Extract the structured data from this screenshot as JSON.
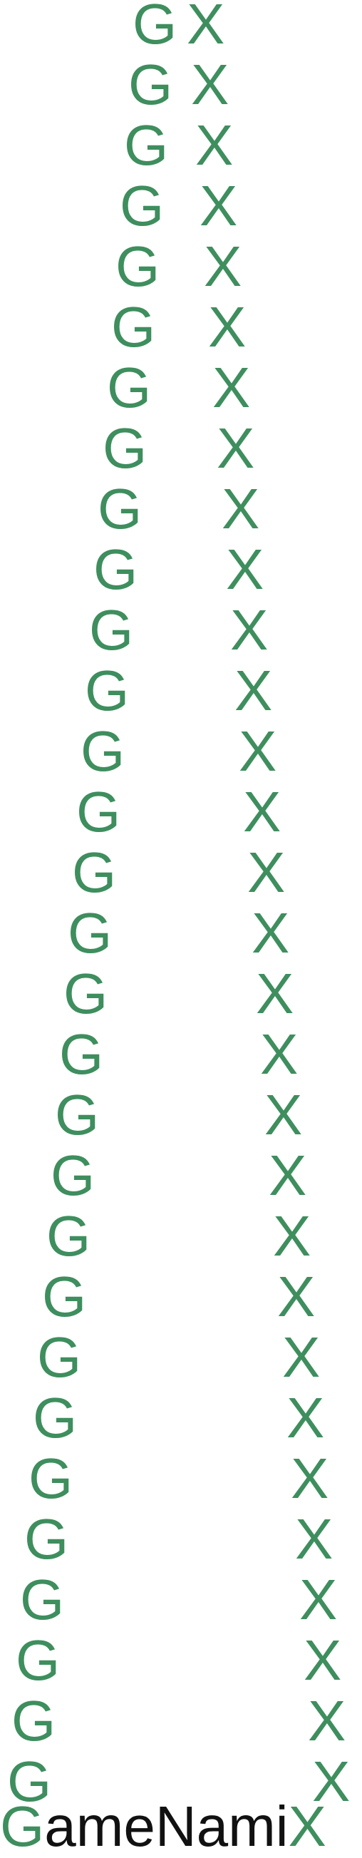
{
  "logo": {
    "wordmark": {
      "first_letter": "G",
      "middle": "ameNami",
      "last_letter": "X"
    },
    "repeated_letter_left": "G",
    "repeated_letter_right": "X",
    "repeat_count": 30,
    "colors": {
      "accent": "#3e8e5e",
      "text": "#111111",
      "background": "#ffffff"
    }
  }
}
